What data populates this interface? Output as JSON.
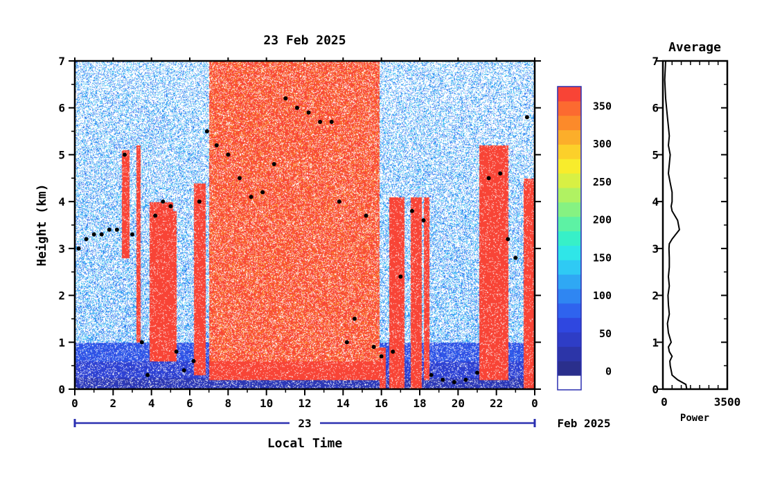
{
  "chart_data": [
    {
      "type": "heatmap",
      "title": "23 Feb 2025",
      "xlabel": "Local Time",
      "ylabel": "Height (km)",
      "x_ticks": [
        "0",
        "2",
        "4",
        "6",
        "8",
        "10",
        "12",
        "14",
        "16",
        "18",
        "20",
        "22",
        "0"
      ],
      "y_ticks": [
        "0",
        "1",
        "2",
        "3",
        "4",
        "5",
        "6",
        "7"
      ],
      "xlim": [
        0,
        24
      ],
      "ylim": [
        0,
        7
      ],
      "date_day": "23",
      "date_label": "Feb 2025",
      "colorbar": {
        "ticks": [
          "0",
          "50",
          "100",
          "150",
          "200",
          "250",
          "300",
          "350"
        ],
        "range": [
          -25,
          375
        ],
        "colors": [
          "#ffffff",
          "#2a2f8c",
          "#2c35a8",
          "#2e3dc6",
          "#2f47e0",
          "#2f63ee",
          "#2f86f2",
          "#2fa8f4",
          "#2fcaf4",
          "#2fe6e8",
          "#37f0c8",
          "#5df2a4",
          "#86f282",
          "#b0f262",
          "#d8f044",
          "#f8ec2c",
          "#fcd02a",
          "#fcae2a",
          "#fc8a2a",
          "#fc6a30",
          "#f84436"
        ]
      },
      "black_trace_points": [
        {
          "x": 0.2,
          "y": 3.0
        },
        {
          "x": 0.6,
          "y": 3.2
        },
        {
          "x": 1.0,
          "y": 3.3
        },
        {
          "x": 1.4,
          "y": 3.3
        },
        {
          "x": 1.8,
          "y": 3.4
        },
        {
          "x": 2.2,
          "y": 3.4
        },
        {
          "x": 2.6,
          "y": 5.0
        },
        {
          "x": 3.0,
          "y": 3.3
        },
        {
          "x": 3.5,
          "y": 1.0
        },
        {
          "x": 3.8,
          "y": 0.3
        },
        {
          "x": 4.2,
          "y": 3.7
        },
        {
          "x": 4.6,
          "y": 4.0
        },
        {
          "x": 5.0,
          "y": 3.9
        },
        {
          "x": 5.3,
          "y": 0.8
        },
        {
          "x": 5.7,
          "y": 0.4
        },
        {
          "x": 6.2,
          "y": 0.6
        },
        {
          "x": 6.5,
          "y": 4.0
        },
        {
          "x": 6.9,
          "y": 5.5
        },
        {
          "x": 7.4,
          "y": 5.2
        },
        {
          "x": 8.0,
          "y": 5.0
        },
        {
          "x": 8.6,
          "y": 4.5
        },
        {
          "x": 9.2,
          "y": 4.1
        },
        {
          "x": 9.8,
          "y": 4.2
        },
        {
          "x": 10.4,
          "y": 4.8
        },
        {
          "x": 11.0,
          "y": 6.2
        },
        {
          "x": 11.6,
          "y": 6.0
        },
        {
          "x": 12.2,
          "y": 5.9
        },
        {
          "x": 12.8,
          "y": 5.7
        },
        {
          "x": 13.4,
          "y": 5.7
        },
        {
          "x": 13.8,
          "y": 4.0
        },
        {
          "x": 14.2,
          "y": 1.0
        },
        {
          "x": 14.6,
          "y": 1.5
        },
        {
          "x": 15.2,
          "y": 3.7
        },
        {
          "x": 15.6,
          "y": 0.9
        },
        {
          "x": 16.0,
          "y": 0.7
        },
        {
          "x": 16.6,
          "y": 0.8
        },
        {
          "x": 17.0,
          "y": 2.4
        },
        {
          "x": 17.6,
          "y": 3.8
        },
        {
          "x": 18.2,
          "y": 3.6
        },
        {
          "x": 18.6,
          "y": 0.3
        },
        {
          "x": 19.2,
          "y": 0.2
        },
        {
          "x": 19.8,
          "y": 0.15
        },
        {
          "x": 20.4,
          "y": 0.2
        },
        {
          "x": 21.0,
          "y": 0.35
        },
        {
          "x": 21.6,
          "y": 4.5
        },
        {
          "x": 22.2,
          "y": 4.6
        },
        {
          "x": 22.6,
          "y": 3.2
        },
        {
          "x": 23.0,
          "y": 2.8
        },
        {
          "x": 23.6,
          "y": 5.8
        }
      ]
    },
    {
      "type": "line",
      "title": "Average",
      "xlabel": "Power",
      "x_ticks": [
        "0",
        "3500"
      ],
      "xlim": [
        0,
        3500
      ],
      "ylim": [
        0,
        7
      ],
      "series": [
        {
          "x": [
            1300,
            1250,
            800,
            500,
            450,
            400,
            380,
            500,
            350,
            300,
            450,
            300,
            250,
            350,
            300,
            280,
            350,
            300,
            350,
            350,
            330,
            350,
            500,
            700,
            900,
            800,
            500,
            450,
            500,
            500,
            400,
            300,
            350,
            400,
            300,
            350,
            300,
            250,
            150,
            100,
            150
          ],
          "y": [
            0.0,
            0.1,
            0.2,
            0.3,
            0.4,
            0.5,
            0.6,
            0.7,
            0.8,
            0.9,
            1.0,
            1.2,
            1.4,
            1.6,
            1.8,
            2.0,
            2.2,
            2.4,
            2.6,
            2.8,
            3.0,
            3.1,
            3.2,
            3.3,
            3.4,
            3.6,
            3.8,
            3.9,
            4.0,
            4.2,
            4.4,
            4.6,
            4.8,
            5.0,
            5.2,
            5.4,
            5.6,
            5.8,
            6.2,
            6.6,
            7.0
          ]
        }
      ]
    }
  ]
}
